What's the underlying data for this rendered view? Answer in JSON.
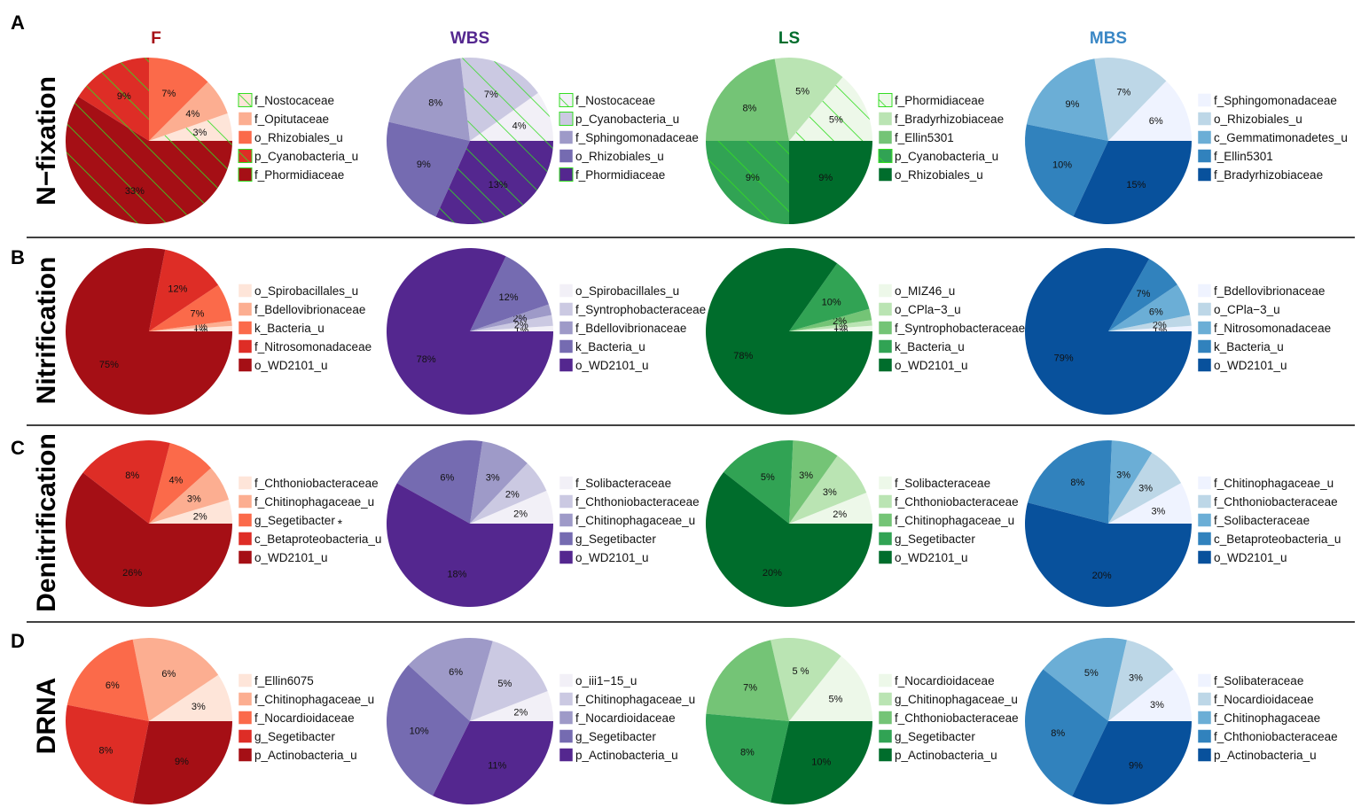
{
  "groups": [
    {
      "name": "F",
      "color": "#a50f15",
      "palette": [
        "#fee5d9",
        "#fcae91",
        "#fb6a4a",
        "#de2d26",
        "#a50f15"
      ]
    },
    {
      "name": "WBS",
      "color": "#54278f",
      "palette": [
        "#f2f0f7",
        "#cbc9e2",
        "#9e9ac8",
        "#756bb1",
        "#54278f"
      ]
    },
    {
      "name": "LS",
      "color": "#006d2c",
      "palette": [
        "#edf8e9",
        "#bae4b3",
        "#74c476",
        "#31a354",
        "#006d2c"
      ]
    },
    {
      "name": "MBS",
      "color": "#3a87c5",
      "palette": [
        "#eff3ff",
        "#bdd7e7",
        "#6baed6",
        "#3182bd",
        "#08519c"
      ]
    }
  ],
  "hatch_color": "#33dd22",
  "rows": [
    {
      "letter": "A",
      "label": "N−fixation"
    },
    {
      "letter": "B",
      "label": "Nitrification"
    },
    {
      "letter": "C",
      "label": "Denitrification"
    },
    {
      "letter": "D",
      "label": "DRNA"
    }
  ],
  "chart_data": [
    {
      "type": "pie",
      "row": "N−fixation",
      "group": "F",
      "labels": [
        "f_Nostocaceae",
        "f_Opitutaceae",
        "o_Rhizobiales_u",
        "p_Cyanobacteria_u",
        "f_Phormidiaceae"
      ],
      "values": [
        3,
        4,
        7,
        9,
        33
      ],
      "value_labels": [
        "3%",
        "4%",
        "7%",
        "9%",
        "33%"
      ],
      "hatched": [
        true,
        false,
        false,
        true,
        true
      ]
    },
    {
      "type": "pie",
      "row": "N−fixation",
      "group": "WBS",
      "labels": [
        "f_Nostocaceae",
        "p_Cyanobacteria_u",
        "f_Sphingomonadaceae",
        "o_Rhizobiales_u",
        "f_Phormidiaceae"
      ],
      "values": [
        4,
        7,
        8,
        9,
        13
      ],
      "value_labels": [
        "4%",
        "7%",
        "8%",
        "9%",
        "13%"
      ],
      "hatched": [
        true,
        true,
        false,
        false,
        true
      ]
    },
    {
      "type": "pie",
      "row": "N−fixation",
      "group": "LS",
      "labels": [
        "f_Phormidiaceae",
        "f_Bradyrhizobiaceae",
        "f_Ellin5301",
        "p_Cyanobacteria_u",
        "o_Rhizobiales_u"
      ],
      "values": [
        5,
        5,
        8,
        9,
        9
      ],
      "value_labels": [
        "5%",
        "5%",
        "8%",
        "9%",
        "9%"
      ],
      "hatched": [
        true,
        false,
        false,
        true,
        false
      ]
    },
    {
      "type": "pie",
      "row": "N−fixation",
      "group": "MBS",
      "labels": [
        "f_Sphingomonadaceae",
        "o_Rhizobiales_u",
        "c_Gemmatimonadetes_u",
        "f_Ellin5301",
        "f_Bradyrhizobiaceae"
      ],
      "values": [
        6,
        7,
        9,
        10,
        15
      ],
      "value_labels": [
        "6%",
        "7%",
        "9%",
        "10%",
        "15%"
      ],
      "hatched": [
        false,
        false,
        false,
        false,
        false
      ]
    },
    {
      "type": "pie",
      "row": "Nitrification",
      "group": "F",
      "labels": [
        "o_Spirobacillales_u",
        "f_Bdellovibrionaceae",
        "k_Bacteria_u",
        "f_Nitrosomonadaceae",
        "o_WD2101_u"
      ],
      "values": [
        1,
        1,
        7,
        12,
        75
      ],
      "value_labels": [
        "1%",
        "1%",
        "7%",
        "12%",
        "75%"
      ],
      "hatched": [
        false,
        false,
        false,
        false,
        false
      ]
    },
    {
      "type": "pie",
      "row": "Nitrification",
      "group": "WBS",
      "labels": [
        "o_Spirobacillales_u",
        "f_Syntrophobacteraceae",
        "f_Bdellovibrionaceae",
        "k_Bacteria_u",
        "o_WD2101_u"
      ],
      "values": [
        1,
        2,
        2,
        12,
        78
      ],
      "value_labels": [
        "1%",
        "2%",
        "2%",
        "12%",
        "78%"
      ],
      "hatched": [
        false,
        false,
        false,
        false,
        false
      ]
    },
    {
      "type": "pie",
      "row": "Nitrification",
      "group": "LS",
      "labels": [
        "o_MIZ46_u",
        "o_CPla−3_u",
        "f_Syntrophobacteraceae",
        "k_Bacteria_u",
        "o_WD2101_u"
      ],
      "values": [
        1,
        1,
        2,
        10,
        78
      ],
      "value_labels": [
        "1%",
        "1%",
        "2%",
        "10%",
        "78%"
      ],
      "hatched": [
        false,
        false,
        false,
        false,
        false
      ]
    },
    {
      "type": "pie",
      "row": "Nitrification",
      "group": "MBS",
      "labels": [
        "f_Bdellovibrionaceae",
        "o_CPla−3_u",
        "f_Nitrosomonadaceae",
        "k_Bacteria_u",
        "o_WD2101_u"
      ],
      "values": [
        1,
        2,
        6,
        7,
        79
      ],
      "value_labels": [
        "1%",
        "2%",
        "6%",
        "7%",
        "79%"
      ],
      "hatched": [
        false,
        false,
        false,
        false,
        false
      ]
    },
    {
      "type": "pie",
      "row": "Denitrification",
      "group": "F",
      "labels": [
        "f_Chthoniobacteraceae",
        "f_Chitinophagaceae_u",
        "g_Segetibacter",
        "c_Betaproteobacteria_u",
        "o_WD2101_u"
      ],
      "values": [
        2,
        3,
        4,
        8,
        26
      ],
      "value_labels": [
        "2%",
        "3%",
        "4%",
        "8%",
        "26%"
      ],
      "hatched": [
        false,
        false,
        false,
        false,
        false
      ],
      "marks": {
        "2": "*"
      }
    },
    {
      "type": "pie",
      "row": "Denitrification",
      "group": "WBS",
      "labels": [
        "f_Solibacteraceae",
        "f_Chthoniobacteraceae",
        "f_Chitinophagaceae_u",
        "g_Segetibacter",
        "o_WD2101_u"
      ],
      "values": [
        2,
        2,
        3,
        6,
        18
      ],
      "value_labels": [
        "2%",
        "2%",
        "3%",
        "6%",
        "18%"
      ],
      "hatched": [
        false,
        false,
        false,
        false,
        false
      ]
    },
    {
      "type": "pie",
      "row": "Denitrification",
      "group": "LS",
      "labels": [
        "f_Solibacteraceae",
        "f_Chthoniobacteraceae",
        "f_Chitinophagaceae_u",
        "g_Segetibacter",
        "o_WD2101_u"
      ],
      "values": [
        2,
        3,
        3,
        5,
        20
      ],
      "value_labels": [
        "2%",
        "3%",
        "3%",
        "5%",
        "20%"
      ],
      "hatched": [
        false,
        false,
        false,
        false,
        false
      ]
    },
    {
      "type": "pie",
      "row": "Denitrification",
      "group": "MBS",
      "labels": [
        "f_Chitinophagaceae_u",
        "f_Chthoniobacteraceae",
        "f_Solibacteraceae",
        "c_Betaproteobacteria_u",
        "o_WD2101_u"
      ],
      "values": [
        3,
        3,
        3,
        8,
        20
      ],
      "value_labels": [
        "3%",
        "3%",
        "3%",
        "8%",
        "20%"
      ],
      "hatched": [
        false,
        false,
        false,
        false,
        false
      ]
    },
    {
      "type": "pie",
      "row": "DRNA",
      "group": "F",
      "labels": [
        "f_Ellin6075",
        "f_Chitinophagaceae_u",
        "f_Nocardioidaceae",
        "g_Segetibacter",
        "p_Actinobacteria_u"
      ],
      "values": [
        3,
        6,
        6,
        8,
        9
      ],
      "value_labels": [
        "3%",
        "6%",
        "6%",
        "8%",
        "9%"
      ],
      "hatched": [
        false,
        false,
        false,
        false,
        false
      ]
    },
    {
      "type": "pie",
      "row": "DRNA",
      "group": "WBS",
      "labels": [
        "o_iii1−15_u",
        "f_Chitinophagaceae_u",
        "f_Nocardioidaceae",
        "g_Segetibacter",
        "p_Actinobacteria_u"
      ],
      "values": [
        2,
        5,
        6,
        10,
        11
      ],
      "value_labels": [
        "2%",
        "5%",
        "6%",
        "10%",
        "11%"
      ],
      "hatched": [
        false,
        false,
        false,
        false,
        false
      ]
    },
    {
      "type": "pie",
      "row": "DRNA",
      "group": "LS",
      "labels": [
        "f_Nocardioidaceae",
        "g_Chitinophagaceae_u",
        "f_Chthoniobacteraceae",
        "g_Segetibacter",
        "p_Actinobacteria_u"
      ],
      "values": [
        5,
        5,
        7,
        8,
        10
      ],
      "value_labels": [
        "5%",
        "5 %",
        "7%",
        "8%",
        "10%"
      ],
      "hatched": [
        false,
        false,
        false,
        false,
        false
      ]
    },
    {
      "type": "pie",
      "row": "DRNA",
      "group": "MBS",
      "labels": [
        "f_Solibateraceae",
        "f_Nocardioidaceae",
        "f_Chitinophagaceae",
        "f_Chthoniobacteraceae",
        "p_Actinobacteria_u"
      ],
      "values": [
        3,
        3,
        5,
        8,
        9
      ],
      "value_labels": [
        "3%",
        "3%",
        "5%",
        "8%",
        "9%"
      ],
      "hatched": [
        false,
        false,
        false,
        false,
        false
      ]
    }
  ]
}
